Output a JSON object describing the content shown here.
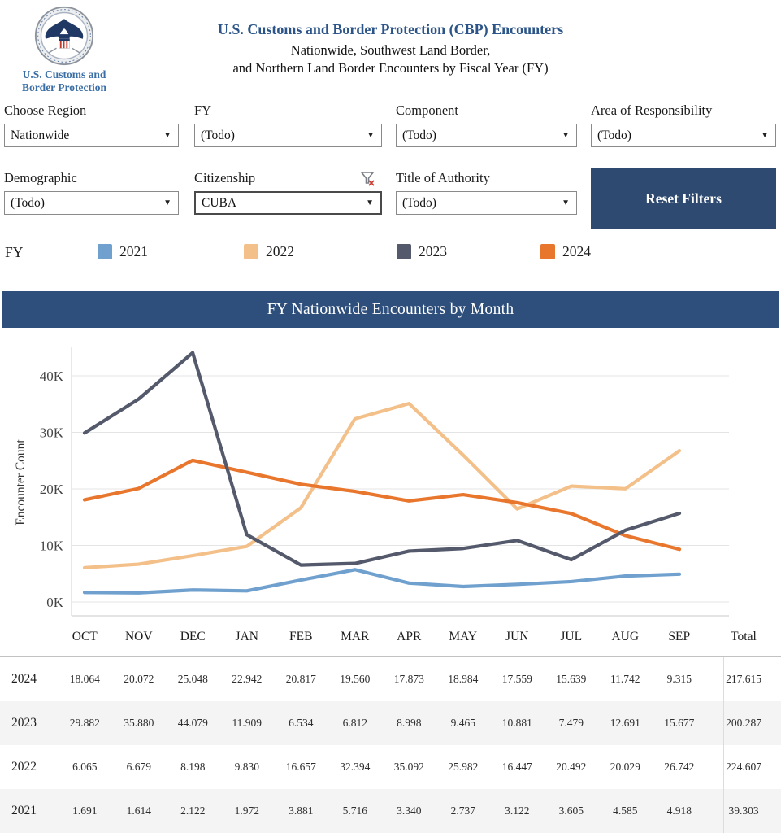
{
  "header": {
    "logo_caption": "U.S. Customs and\nBorder Protection",
    "title": "U.S. Customs and Border Protection (CBP) Encounters",
    "subtitle_line1": "Nationwide, Southwest Land Border,",
    "subtitle_line2": "and Northern Land Border Encounters by Fiscal Year (FY)"
  },
  "filters": {
    "row1": [
      {
        "id": "choose-region",
        "label": "Choose Region",
        "value": "Nationwide"
      },
      {
        "id": "fy",
        "label": "FY",
        "value": "(Todo)"
      },
      {
        "id": "component",
        "label": "Component",
        "value": "(Todo)"
      },
      {
        "id": "area-of-responsibility",
        "label": "Area of Responsibility",
        "value": "(Todo)"
      }
    ],
    "row2": [
      {
        "id": "demographic",
        "label": "Demographic",
        "value": "(Todo)",
        "active": false
      },
      {
        "id": "citizenship",
        "label": "Citizenship",
        "value": "CUBA",
        "active": true,
        "has_clear_icon": true
      },
      {
        "id": "title-of-authority",
        "label": "Title of Authority",
        "value": "(Todo)",
        "active": false
      }
    ],
    "reset_button_label": "Reset Filters"
  },
  "legend": {
    "label": "FY",
    "items": [
      {
        "label": "2021",
        "color": "#6FA0CE"
      },
      {
        "label": "2022",
        "color": "#F4C08A"
      },
      {
        "label": "2023",
        "color": "#545A6B"
      },
      {
        "label": "2024",
        "color": "#E8762D"
      }
    ]
  },
  "chart": {
    "title": "FY Nationwide Encounters by Month"
  },
  "chart_data": {
    "type": "line",
    "title": "FY Nationwide Encounters by Month",
    "xlabel": "",
    "ylabel": "Encounter Count",
    "ylim": [
      0,
      45000
    ],
    "ytick_values": [
      0,
      10000,
      20000,
      30000,
      40000
    ],
    "ytick_labels": [
      "0K",
      "10K",
      "20K",
      "30K",
      "40K"
    ],
    "grid": true,
    "legend_position": "top",
    "categories": [
      "OCT",
      "NOV",
      "DEC",
      "JAN",
      "FEB",
      "MAR",
      "APR",
      "MAY",
      "JUN",
      "JUL",
      "AUG",
      "SEP"
    ],
    "series": [
      {
        "name": "2021",
        "color": "#6FA0CE",
        "values": [
          1691,
          1614,
          2122,
          1972,
          3881,
          5716,
          3340,
          2737,
          3122,
          3605,
          4585,
          4918
        ]
      },
      {
        "name": "2022",
        "color": "#F4C08A",
        "values": [
          6065,
          6679,
          8198,
          9830,
          16657,
          32394,
          35092,
          25982,
          16447,
          20492,
          20029,
          26742
        ]
      },
      {
        "name": "2024",
        "color": "#E8762D",
        "values": [
          18064,
          20072,
          25048,
          22942,
          20817,
          19560,
          17873,
          18984,
          17559,
          15639,
          11742,
          9315
        ]
      },
      {
        "name": "2023",
        "color": "#545A6B",
        "values": [
          29882,
          35880,
          44079,
          11909,
          6534,
          6812,
          8998,
          9465,
          10881,
          7479,
          12691,
          15677
        ]
      }
    ]
  },
  "table": {
    "columns": [
      "OCT",
      "NOV",
      "DEC",
      "JAN",
      "FEB",
      "MAR",
      "APR",
      "MAY",
      "JUN",
      "JUL",
      "AUG",
      "SEP"
    ],
    "total_label": "Total",
    "rows": [
      {
        "year": "2024",
        "cells": [
          "18.064",
          "20.072",
          "25.048",
          "22.942",
          "20.817",
          "19.560",
          "17.873",
          "18.984",
          "17.559",
          "15.639",
          "11.742",
          "9.315"
        ],
        "total": "217.615",
        "striped": false
      },
      {
        "year": "2023",
        "cells": [
          "29.882",
          "35.880",
          "44.079",
          "11.909",
          "6.534",
          "6.812",
          "8.998",
          "9.465",
          "10.881",
          "7.479",
          "12.691",
          "15.677"
        ],
        "total": "200.287",
        "striped": true
      },
      {
        "year": "2022",
        "cells": [
          "6.065",
          "6.679",
          "8.198",
          "9.830",
          "16.657",
          "32.394",
          "35.092",
          "25.982",
          "16.447",
          "20.492",
          "20.029",
          "26.742"
        ],
        "total": "224.607",
        "striped": false
      },
      {
        "year": "2021",
        "cells": [
          "1.691",
          "1.614",
          "2.122",
          "1.972",
          "3.881",
          "5.716",
          "3.340",
          "2.737",
          "3.122",
          "3.605",
          "4.585",
          "4.918"
        ],
        "total": "39.303",
        "striped": true
      }
    ]
  }
}
